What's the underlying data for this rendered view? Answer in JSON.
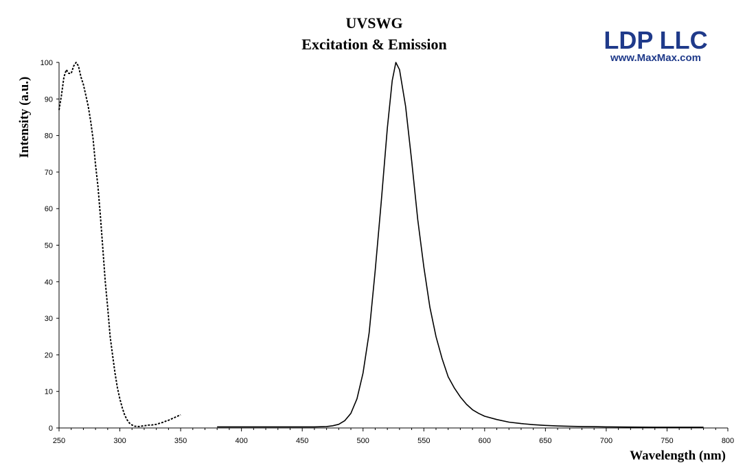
{
  "chart_data": {
    "type": "line",
    "title_lines": [
      "UVSWG",
      "Excitation & Emission"
    ],
    "xlabel": "Wavelength (nm)",
    "ylabel": "Intensity (a.u.)",
    "xlim": [
      250,
      800
    ],
    "ylim": [
      0,
      100
    ],
    "x_ticks": [
      250,
      300,
      350,
      400,
      450,
      500,
      550,
      600,
      650,
      700,
      750,
      800
    ],
    "y_ticks": [
      0,
      10,
      20,
      30,
      40,
      50,
      60,
      70,
      80,
      90,
      100
    ],
    "grid": false,
    "series": [
      {
        "style": "dotted",
        "color": "#000000",
        "x": [
          250,
          252,
          254,
          256,
          258,
          260,
          262,
          264,
          266,
          268,
          270,
          272,
          274,
          276,
          278,
          280,
          282,
          284,
          286,
          288,
          290,
          292,
          294,
          296,
          298,
          300,
          302,
          304,
          306,
          308,
          310,
          312,
          314,
          316,
          318,
          320,
          322,
          324,
          326,
          328,
          330,
          332,
          334,
          336,
          338,
          340,
          342,
          344,
          346,
          348,
          350
        ],
        "y": [
          87,
          91,
          96,
          98,
          97,
          97,
          99,
          100,
          99,
          96,
          94,
          91,
          88,
          84,
          79,
          72,
          66,
          58,
          49,
          40,
          33,
          25,
          20,
          15,
          11,
          8,
          5.5,
          3.5,
          2.2,
          1.3,
          0.8,
          0.5,
          0.4,
          0.4,
          0.5,
          0.6,
          0.7,
          0.8,
          0.8,
          0.9,
          1.0,
          1.2,
          1.4,
          1.6,
          1.9,
          2.1,
          2.4,
          2.7,
          3.0,
          3.3,
          3.6
        ]
      },
      {
        "style": "solid",
        "color": "#000000",
        "x": [
          380,
          400,
          420,
          440,
          460,
          470,
          475,
          480,
          485,
          490,
          495,
          500,
          505,
          510,
          515,
          520,
          524,
          527,
          530,
          535,
          540,
          545,
          550,
          555,
          560,
          565,
          570,
          575,
          580,
          585,
          590,
          595,
          600,
          610,
          620,
          630,
          640,
          650,
          660,
          670,
          680,
          690,
          700,
          720,
          740,
          760,
          780
        ],
        "y": [
          0.3,
          0.3,
          0.3,
          0.3,
          0.3,
          0.4,
          0.6,
          1.0,
          2.0,
          4.0,
          8.0,
          15,
          26,
          43,
          62,
          82,
          95,
          100,
          98,
          88,
          73,
          57,
          44,
          33,
          25,
          19,
          14,
          11,
          8.5,
          6.5,
          5.0,
          4.0,
          3.2,
          2.3,
          1.6,
          1.2,
          0.9,
          0.7,
          0.55,
          0.45,
          0.4,
          0.35,
          0.3,
          0.25,
          0.2,
          0.2,
          0.2
        ]
      }
    ]
  },
  "branding": {
    "name": "LDP LLC",
    "url": "www.MaxMax.com",
    "color": "#1f3a8a"
  }
}
